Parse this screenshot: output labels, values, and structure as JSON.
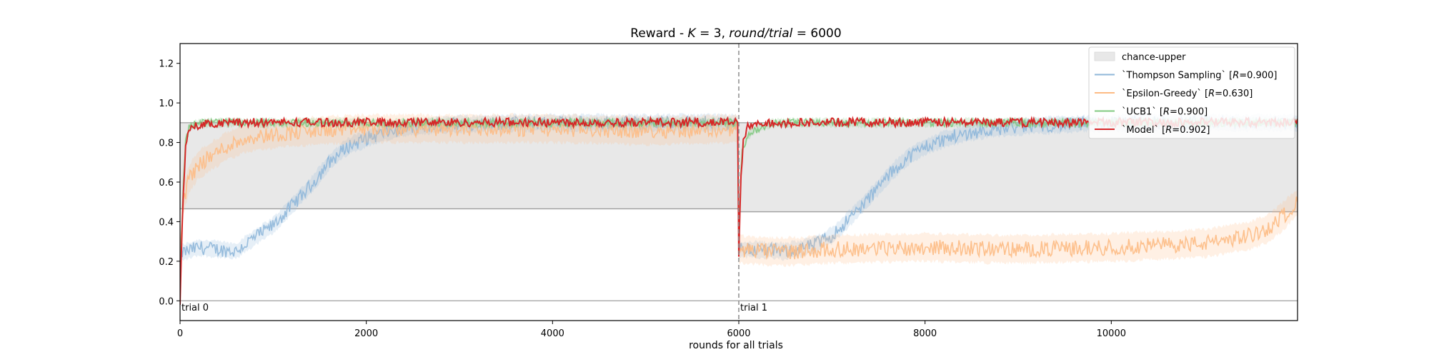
{
  "chart_data": {
    "type": "line",
    "title": "Reward - K = 3, round/trial = 6000",
    "title_parts": {
      "prefix": "Reward - ",
      "k_symbol": "K",
      "k_eq": " = 3, ",
      "round_symbol": "round/trial",
      "round_eq": " = 6000"
    },
    "xlabel": "rounds for all trials",
    "ylabel": "",
    "xlim": [
      0,
      12000
    ],
    "ylim": [
      -0.1,
      1.3
    ],
    "xticks": [
      "0",
      "2000",
      "4000",
      "6000",
      "8000",
      "10000"
    ],
    "yticks": [
      "0.0",
      "0.2",
      "0.4",
      "0.6",
      "0.8",
      "1.0",
      "1.2"
    ],
    "trial_boundary_x": 6000,
    "trial_labels": [
      {
        "text": "trial 0",
        "x": 0
      },
      {
        "text": "trial 1",
        "x": 6000
      }
    ],
    "reference_lines": [
      {
        "name": "zero",
        "y": 0.0
      },
      {
        "name": "upper",
        "y": 0.9
      },
      {
        "name": "chance-trial-0",
        "y": 0.465,
        "x": [
          0,
          6000
        ]
      },
      {
        "name": "chance-trial-1",
        "y": 0.45,
        "x": [
          6000,
          12000
        ]
      }
    ],
    "chance_band": {
      "name": "chance-upper",
      "segments": [
        {
          "x": [
            0,
            6000
          ],
          "y": [
            0.465,
            0.9
          ]
        },
        {
          "x": [
            6000,
            12000
          ],
          "y": [
            0.45,
            0.9
          ]
        }
      ],
      "color": "#e8e8e8"
    },
    "legend": {
      "placement": "top-right",
      "entries": [
        {
          "kind": "patch",
          "label": "chance-upper",
          "color": "#e8e8e8"
        },
        {
          "kind": "line",
          "label": "`Thompson Sampling` [R=0.900]",
          "pre": "`Thompson Sampling` [",
          "r": "R",
          "post": "=0.900]",
          "color": "#8fb7d9"
        },
        {
          "kind": "line",
          "label": "`Epsilon-Greedy` [R=0.630]",
          "pre": "`Epsilon-Greedy` [",
          "r": "R",
          "post": "=0.630]",
          "color": "#fdbb84"
        },
        {
          "kind": "line",
          "label": "`UCB1` [R=0.900]",
          "pre": "`UCB1` [",
          "r": "R",
          "post": "=0.900]",
          "color": "#7fc97f"
        },
        {
          "kind": "line",
          "label": "`Model` [R=0.902]",
          "pre": "`Model` [",
          "r": "R",
          "post": "=0.902]",
          "color": "#d62728"
        }
      ]
    },
    "series": [
      {
        "name": "`Thompson Sampling` [R=0.900]",
        "color": "#8fb7d9",
        "x": [
          0,
          200,
          400,
          600,
          800,
          1000,
          1200,
          1400,
          1600,
          1800,
          2000,
          2200,
          2400,
          2600,
          2800,
          3000,
          4000,
          5000,
          5999,
          6000,
          6200,
          6500,
          6800,
          7000,
          7200,
          7400,
          7600,
          7800,
          8000,
          8300,
          8600,
          9000,
          9500,
          10000,
          11000,
          12000
        ],
        "y": [
          0.24,
          0.27,
          0.26,
          0.25,
          0.32,
          0.38,
          0.48,
          0.58,
          0.7,
          0.78,
          0.82,
          0.85,
          0.87,
          0.88,
          0.89,
          0.895,
          0.9,
          0.9,
          0.9,
          0.26,
          0.26,
          0.25,
          0.28,
          0.33,
          0.42,
          0.52,
          0.63,
          0.72,
          0.78,
          0.83,
          0.86,
          0.88,
          0.89,
          0.9,
          0.9,
          0.9
        ],
        "band": 0.04
      },
      {
        "name": "`Epsilon-Greedy` [R=0.630]",
        "color": "#fdbb84",
        "x": [
          0,
          30,
          100,
          200,
          300,
          400,
          500,
          600,
          700,
          800,
          1000,
          1200,
          1500,
          2000,
          3000,
          4000,
          5000,
          5999,
          6000,
          6300,
          6600,
          7000,
          8000,
          9000,
          10000,
          11000,
          11500,
          11700,
          11850,
          12000
        ],
        "y": [
          0.2,
          0.5,
          0.62,
          0.69,
          0.72,
          0.75,
          0.78,
          0.8,
          0.82,
          0.83,
          0.84,
          0.85,
          0.86,
          0.87,
          0.87,
          0.87,
          0.86,
          0.87,
          0.26,
          0.25,
          0.25,
          0.26,
          0.27,
          0.26,
          0.27,
          0.29,
          0.33,
          0.37,
          0.43,
          0.5
        ],
        "band": 0.07
      },
      {
        "name": "`UCB1` [R=0.900]",
        "color": "#7fc97f",
        "x": [
          0,
          30,
          60,
          100,
          200,
          400,
          1000,
          3000,
          5999,
          6000,
          6030,
          6100,
          6200,
          6400,
          7000,
          9000,
          12000
        ],
        "y": [
          0.1,
          0.55,
          0.8,
          0.88,
          0.9,
          0.9,
          0.9,
          0.9,
          0.9,
          0.3,
          0.75,
          0.84,
          0.87,
          0.9,
          0.9,
          0.9,
          0.9
        ],
        "band": 0.02
      },
      {
        "name": "`Model` [R=0.902]",
        "color": "#d62728",
        "x": [
          0,
          30,
          60,
          100,
          200,
          400,
          1000,
          3000,
          5999,
          6000,
          6020,
          6050,
          6100,
          6300,
          7000,
          9000,
          12000
        ],
        "y": [
          0.0,
          0.5,
          0.78,
          0.86,
          0.89,
          0.9,
          0.902,
          0.902,
          0.902,
          0.22,
          0.6,
          0.82,
          0.88,
          0.9,
          0.902,
          0.902,
          0.902
        ],
        "band": 0.0
      }
    ]
  }
}
